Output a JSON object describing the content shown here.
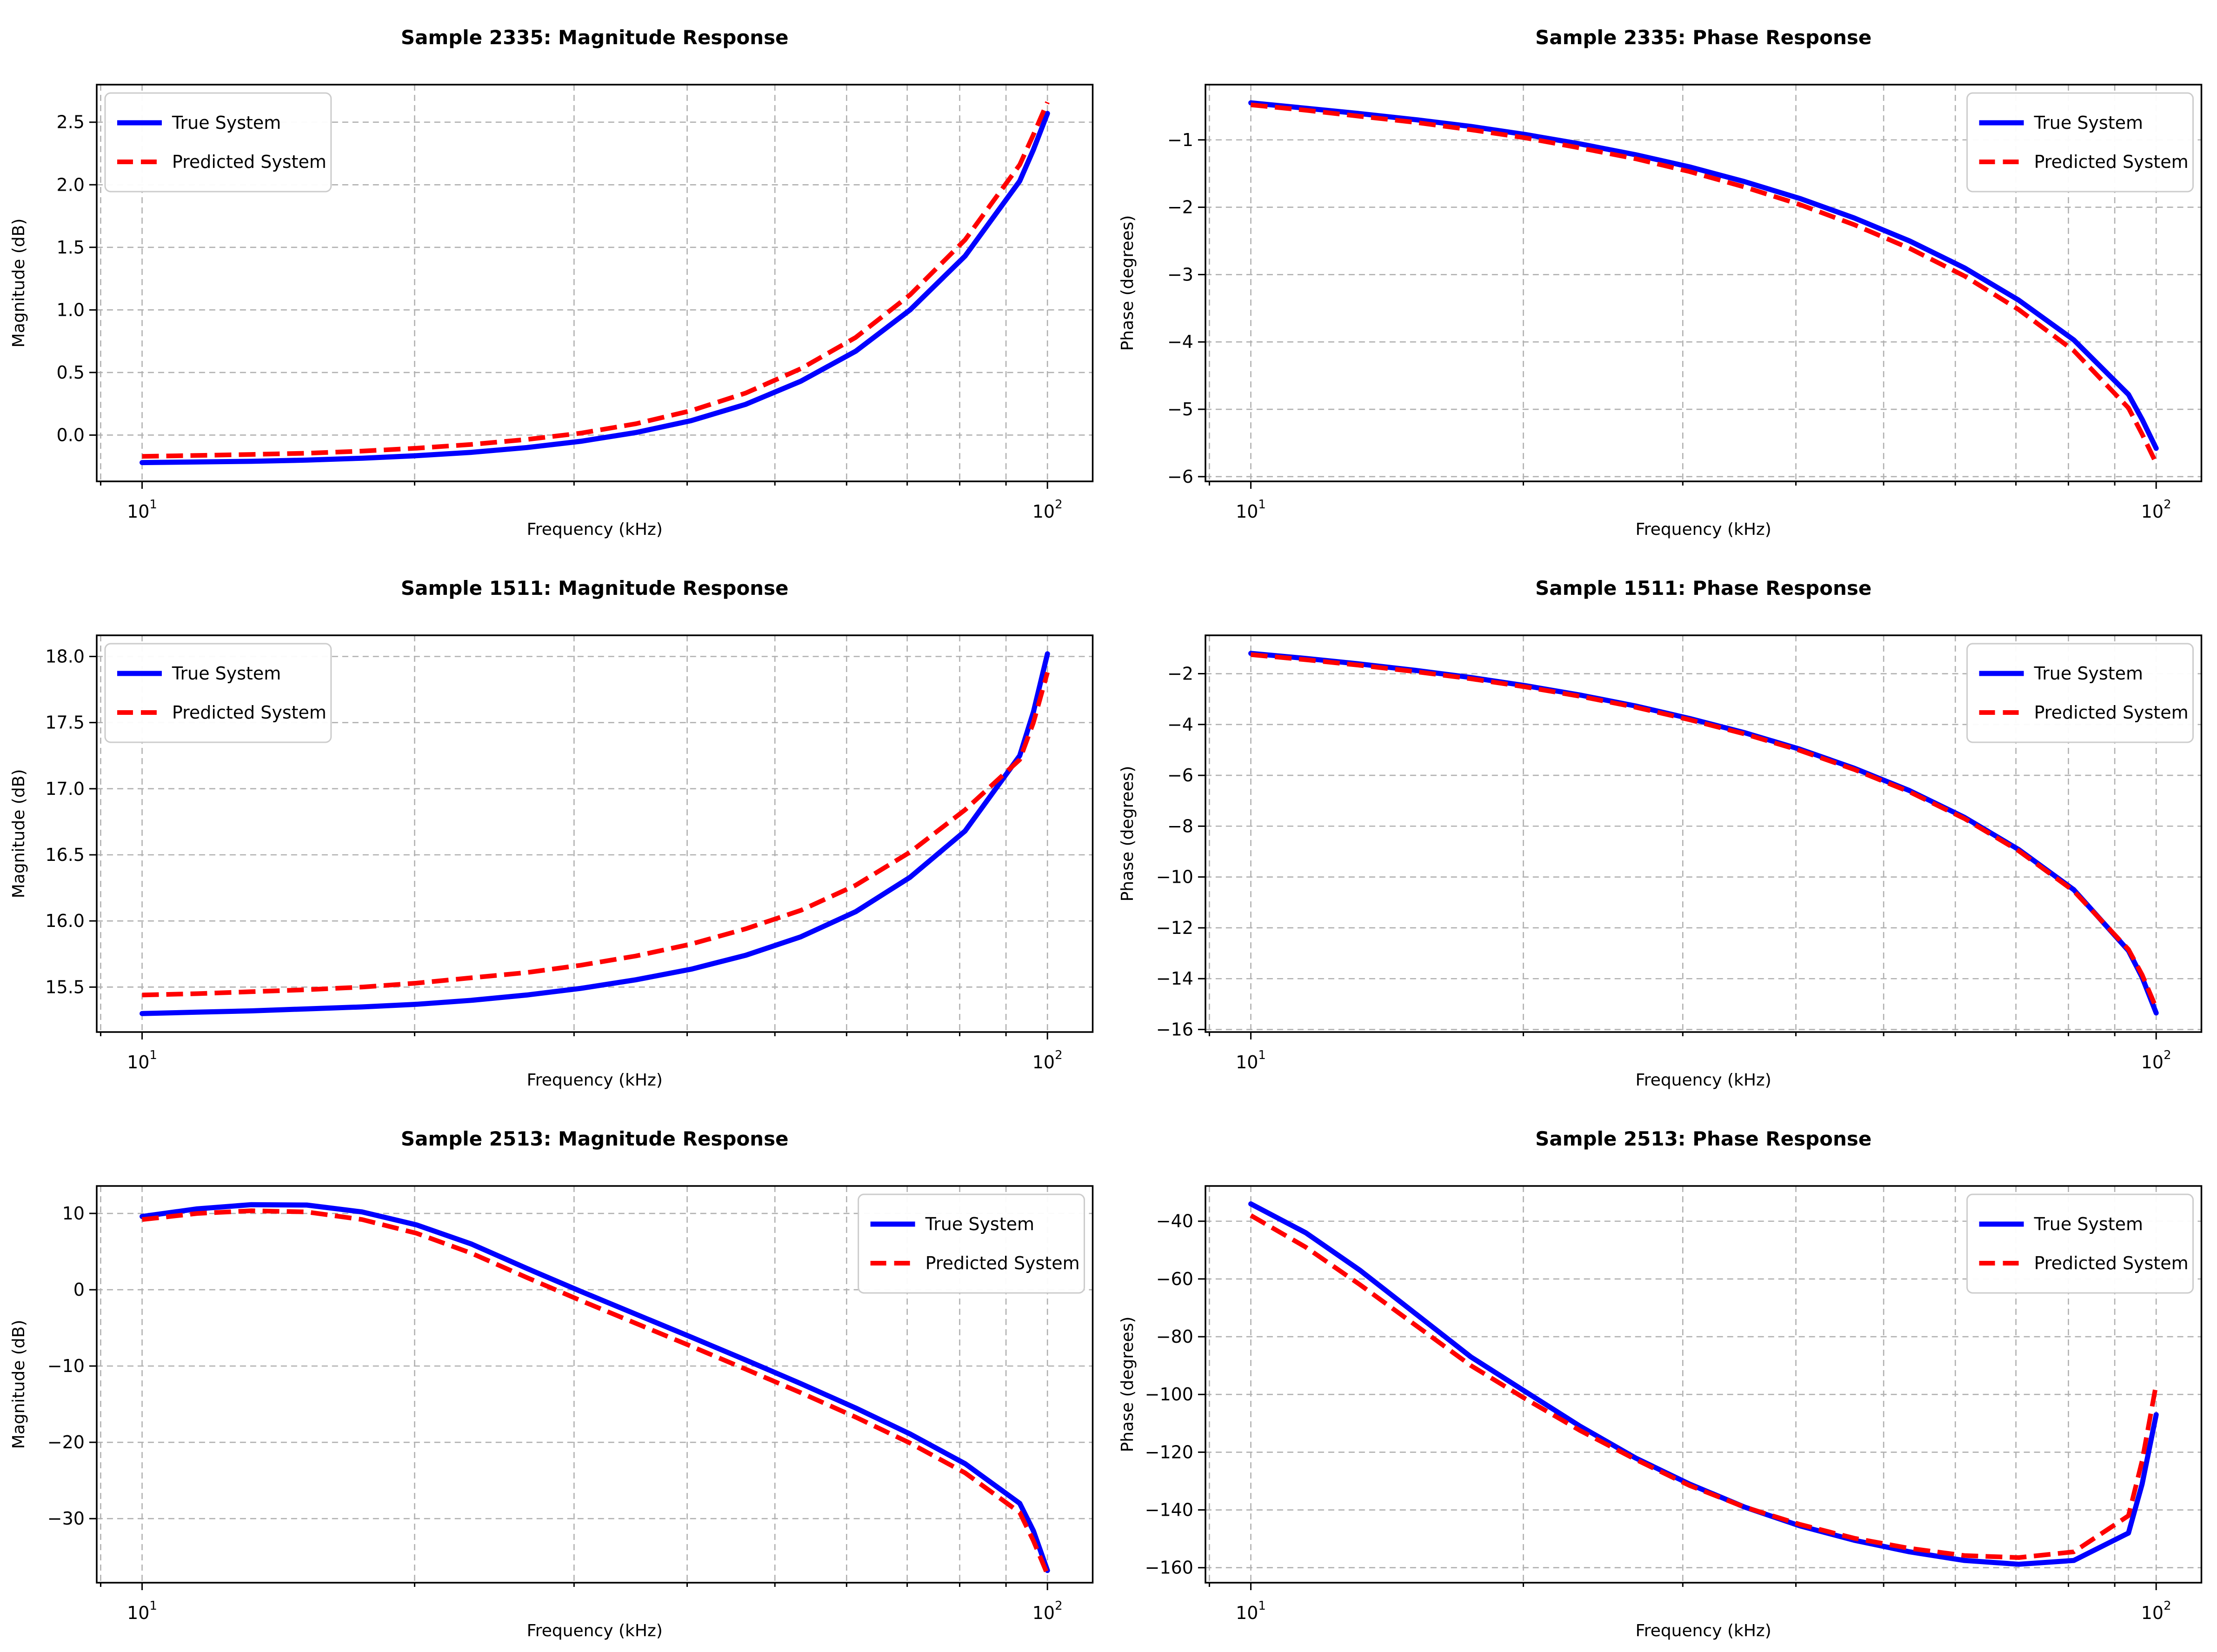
{
  "figure": {
    "background": "#ffffff",
    "frame_color": "#000000",
    "grid_color": "#b0b0b0",
    "rows": 3,
    "columns": 2
  },
  "chart_data": [
    {
      "type": "line",
      "title": "Sample 2335: Magnitude Response",
      "xlabel": "Frequency (kHz)",
      "ylabel": "Magnitude (dB)",
      "x_scale": "log",
      "xlim": [
        8.91,
        112.2
      ],
      "ylim": [
        -0.37,
        2.8
      ],
      "grid": true,
      "legend_position": "upper-left",
      "xticks_major": [
        {
          "value": 10,
          "label": "10",
          "exp": "1"
        },
        {
          "value": 100,
          "label": "10",
          "exp": "2"
        }
      ],
      "xticks_minor": [
        9,
        20,
        30,
        40,
        50,
        60,
        70,
        80,
        90
      ],
      "yticks": [
        {
          "value": 0.0,
          "label": "0.0"
        },
        {
          "value": 0.5,
          "label": "0.5"
        },
        {
          "value": 1.0,
          "label": "1.0"
        },
        {
          "value": 1.5,
          "label": "1.5"
        },
        {
          "value": 2.0,
          "label": "2.0"
        },
        {
          "value": 2.5,
          "label": "2.5"
        }
      ],
      "x": [
        10,
        11.5,
        13.2,
        15.2,
        17.5,
        20.1,
        23.1,
        26.6,
        30.5,
        35.1,
        40.4,
        46.4,
        53.4,
        61.4,
        70.5,
        81.1,
        93.2,
        96.5,
        100
      ],
      "series": [
        {
          "name": "True System",
          "color": "#0000ff",
          "dash": "solid",
          "width": 11,
          "y": [
            -0.22,
            -0.215,
            -0.21,
            -0.2,
            -0.185,
            -0.165,
            -0.138,
            -0.1,
            -0.05,
            0.02,
            0.115,
            0.245,
            0.43,
            0.67,
            1.0,
            1.43,
            2.03,
            2.28,
            2.57
          ]
        },
        {
          "name": "Predicted System",
          "color": "#ff0000",
          "dash": "dashed",
          "width": 10,
          "y": [
            -0.17,
            -0.163,
            -0.155,
            -0.145,
            -0.128,
            -0.105,
            -0.075,
            -0.035,
            0.015,
            0.09,
            0.195,
            0.335,
            0.53,
            0.78,
            1.12,
            1.56,
            2.16,
            2.4,
            2.66
          ]
        }
      ]
    },
    {
      "type": "line",
      "title": "Sample 2335: Phase Response",
      "xlabel": "Frequency (kHz)",
      "ylabel": "Phase (degrees)",
      "x_scale": "log",
      "xlim": [
        8.91,
        112.2
      ],
      "ylim": [
        -6.07,
        -0.18
      ],
      "grid": true,
      "legend_position": "upper-right",
      "xticks_major": [
        {
          "value": 10,
          "label": "10",
          "exp": "1"
        },
        {
          "value": 100,
          "label": "10",
          "exp": "2"
        }
      ],
      "xticks_minor": [
        9,
        20,
        30,
        40,
        50,
        60,
        70,
        80,
        90
      ],
      "yticks": [
        {
          "value": -1,
          "label": "−1"
        },
        {
          "value": -2,
          "label": "−2"
        },
        {
          "value": -3,
          "label": "−3"
        },
        {
          "value": -4,
          "label": "−4"
        },
        {
          "value": -5,
          "label": "−5"
        },
        {
          "value": -6,
          "label": "−6"
        }
      ],
      "x": [
        10,
        11.5,
        13.2,
        15.2,
        17.5,
        20.1,
        23.1,
        26.6,
        30.5,
        35.1,
        40.4,
        46.4,
        53.4,
        61.4,
        70.5,
        81.1,
        93.2,
        96.5,
        100
      ],
      "series": [
        {
          "name": "True System",
          "color": "#0000ff",
          "dash": "solid",
          "width": 11,
          "y": [
            -0.45,
            -0.53,
            -0.61,
            -0.7,
            -0.8,
            -0.92,
            -1.06,
            -1.22,
            -1.4,
            -1.62,
            -1.87,
            -2.16,
            -2.5,
            -2.9,
            -3.38,
            -3.97,
            -4.78,
            -5.15,
            -5.58
          ]
        },
        {
          "name": "Predicted System",
          "color": "#ff0000",
          "dash": "dashed",
          "width": 10,
          "y": [
            -0.48,
            -0.56,
            -0.65,
            -0.74,
            -0.85,
            -0.97,
            -1.12,
            -1.28,
            -1.47,
            -1.7,
            -1.96,
            -2.26,
            -2.61,
            -3.02,
            -3.52,
            -4.13,
            -4.98,
            -5.37,
            -5.8
          ]
        }
      ]
    },
    {
      "type": "line",
      "title": "Sample 1511: Magnitude Response",
      "xlabel": "Frequency (kHz)",
      "ylabel": "Magnitude (dB)",
      "x_scale": "log",
      "xlim": [
        8.91,
        112.2
      ],
      "ylim": [
        15.16,
        18.16
      ],
      "grid": true,
      "legend_position": "upper-left",
      "xticks_major": [
        {
          "value": 10,
          "label": "10",
          "exp": "1"
        },
        {
          "value": 100,
          "label": "10",
          "exp": "2"
        }
      ],
      "xticks_minor": [
        9,
        20,
        30,
        40,
        50,
        60,
        70,
        80,
        90
      ],
      "yticks": [
        {
          "value": 15.5,
          "label": "15.5"
        },
        {
          "value": 16.0,
          "label": "16.0"
        },
        {
          "value": 16.5,
          "label": "16.5"
        },
        {
          "value": 17.0,
          "label": "17.0"
        },
        {
          "value": 17.5,
          "label": "17.5"
        },
        {
          "value": 18.0,
          "label": "18.0"
        }
      ],
      "x": [
        10,
        11.5,
        13.2,
        15.2,
        17.5,
        20.1,
        23.1,
        26.6,
        30.5,
        35.1,
        40.4,
        46.4,
        53.4,
        61.4,
        70.5,
        81.1,
        93.2,
        96.5,
        100
      ],
      "series": [
        {
          "name": "True System",
          "color": "#0000ff",
          "dash": "solid",
          "width": 11,
          "y": [
            15.3,
            15.31,
            15.32,
            15.335,
            15.35,
            15.37,
            15.4,
            15.44,
            15.49,
            15.555,
            15.635,
            15.74,
            15.88,
            16.07,
            16.33,
            16.68,
            17.25,
            17.58,
            18.02
          ]
        },
        {
          "name": "Predicted System",
          "color": "#ff0000",
          "dash": "dashed",
          "width": 10,
          "y": [
            15.44,
            15.45,
            15.465,
            15.48,
            15.5,
            15.53,
            15.57,
            15.61,
            15.665,
            15.735,
            15.825,
            15.94,
            16.08,
            16.27,
            16.52,
            16.84,
            17.22,
            17.5,
            17.88
          ]
        }
      ]
    },
    {
      "type": "line",
      "title": "Sample 1511: Phase Response",
      "xlabel": "Frequency (kHz)",
      "ylabel": "Phase (degrees)",
      "x_scale": "log",
      "xlim": [
        8.91,
        112.2
      ],
      "ylim": [
        -16.1,
        -0.49
      ],
      "grid": true,
      "legend_position": "upper-right",
      "xticks_major": [
        {
          "value": 10,
          "label": "10",
          "exp": "1"
        },
        {
          "value": 100,
          "label": "10",
          "exp": "2"
        }
      ],
      "xticks_minor": [
        9,
        20,
        30,
        40,
        50,
        60,
        70,
        80,
        90
      ],
      "yticks": [
        {
          "value": -2,
          "label": "−2"
        },
        {
          "value": -4,
          "label": "−4"
        },
        {
          "value": -6,
          "label": "−6"
        },
        {
          "value": -8,
          "label": "−8"
        },
        {
          "value": -10,
          "label": "−10"
        },
        {
          "value": -12,
          "label": "−12"
        },
        {
          "value": -14,
          "label": "−14"
        },
        {
          "value": -16,
          "label": "−16"
        }
      ],
      "x": [
        10,
        11.5,
        13.2,
        15.2,
        17.5,
        20.1,
        23.1,
        26.6,
        30.5,
        35.1,
        40.4,
        46.4,
        53.4,
        61.4,
        70.5,
        81.1,
        93.2,
        96.5,
        100
      ],
      "series": [
        {
          "name": "True System",
          "color": "#0000ff",
          "dash": "solid",
          "width": 11,
          "y": [
            -1.2,
            -1.4,
            -1.62,
            -1.87,
            -2.15,
            -2.47,
            -2.84,
            -3.27,
            -3.76,
            -4.32,
            -4.97,
            -5.72,
            -6.6,
            -7.65,
            -8.92,
            -10.5,
            -12.9,
            -13.95,
            -15.35
          ]
        },
        {
          "name": "Predicted System",
          "color": "#ff0000",
          "dash": "dashed",
          "width": 10,
          "y": [
            -1.25,
            -1.45,
            -1.67,
            -1.92,
            -2.2,
            -2.52,
            -2.89,
            -3.32,
            -3.81,
            -4.37,
            -5.02,
            -5.77,
            -6.65,
            -7.7,
            -8.97,
            -10.55,
            -12.85,
            -13.85,
            -15.15
          ]
        }
      ]
    },
    {
      "type": "line",
      "title": "Sample 2513: Magnitude Response",
      "xlabel": "Frequency (kHz)",
      "ylabel": "Magnitude (dB)",
      "x_scale": "log",
      "xlim": [
        8.91,
        112.2
      ],
      "ylim": [
        -38.4,
        13.6
      ],
      "grid": true,
      "legend_position": "upper-right",
      "xticks_major": [
        {
          "value": 10,
          "label": "10",
          "exp": "1"
        },
        {
          "value": 100,
          "label": "10",
          "exp": "2"
        }
      ],
      "xticks_minor": [
        9,
        20,
        30,
        40,
        50,
        60,
        70,
        80,
        90
      ],
      "yticks": [
        {
          "value": 10,
          "label": "10"
        },
        {
          "value": 0,
          "label": "0"
        },
        {
          "value": -10,
          "label": "−10"
        },
        {
          "value": -20,
          "label": "−20"
        },
        {
          "value": -30,
          "label": "−30"
        }
      ],
      "x": [
        10,
        11.5,
        13.2,
        15.2,
        17.5,
        20.1,
        23.1,
        26.6,
        30.5,
        35.1,
        40.4,
        46.4,
        53.4,
        61.4,
        70.5,
        81.1,
        93.2,
        96.5,
        100
      ],
      "series": [
        {
          "name": "True System",
          "color": "#0000ff",
          "dash": "solid",
          "width": 11,
          "y": [
            9.6,
            10.6,
            11.15,
            11.1,
            10.2,
            8.5,
            6.0,
            2.8,
            -0.2,
            -3.2,
            -6.2,
            -9.2,
            -12.3,
            -15.5,
            -18.9,
            -22.8,
            -28.0,
            -31.6,
            -36.8
          ]
        },
        {
          "name": "Predicted System",
          "color": "#ff0000",
          "dash": "dashed",
          "width": 10,
          "y": [
            9.2,
            10.0,
            10.35,
            10.2,
            9.2,
            7.4,
            4.8,
            1.6,
            -1.4,
            -4.4,
            -7.4,
            -10.4,
            -13.5,
            -16.7,
            -20.1,
            -24.0,
            -29.2,
            -32.9,
            -37.3
          ]
        }
      ]
    },
    {
      "type": "line",
      "title": "Sample 2513: Phase Response",
      "xlabel": "Frequency (kHz)",
      "ylabel": "Phase (degrees)",
      "x_scale": "log",
      "xlim": [
        8.91,
        112.2
      ],
      "ylim": [
        -165.2,
        -27.8
      ],
      "grid": true,
      "legend_position": "upper-right",
      "xticks_major": [
        {
          "value": 10,
          "label": "10",
          "exp": "1"
        },
        {
          "value": 100,
          "label": "10",
          "exp": "2"
        }
      ],
      "xticks_minor": [
        9,
        20,
        30,
        40,
        50,
        60,
        70,
        80,
        90
      ],
      "yticks": [
        {
          "value": -40,
          "label": "−40"
        },
        {
          "value": -60,
          "label": "−60"
        },
        {
          "value": -80,
          "label": "−80"
        },
        {
          "value": -100,
          "label": "−100"
        },
        {
          "value": -120,
          "label": "−120"
        },
        {
          "value": -140,
          "label": "−140"
        },
        {
          "value": -160,
          "label": "−160"
        }
      ],
      "x": [
        10,
        11.5,
        13.2,
        15.2,
        17.5,
        20.1,
        23.1,
        26.6,
        30.5,
        35.1,
        40.4,
        46.4,
        53.4,
        61.4,
        70.5,
        81.1,
        93.2,
        96.5,
        100
      ],
      "series": [
        {
          "name": "True System",
          "color": "#0000ff",
          "dash": "solid",
          "width": 11,
          "y": [
            -34,
            -44,
            -57,
            -72,
            -87,
            -99,
            -111,
            -122,
            -131,
            -139,
            -145.5,
            -150.5,
            -154.5,
            -157.5,
            -158.8,
            -157.5,
            -148,
            -131,
            -107
          ]
        },
        {
          "name": "Predicted System",
          "color": "#ff0000",
          "dash": "dashed",
          "width": 10,
          "y": [
            -38,
            -49,
            -62,
            -76,
            -90,
            -101.5,
            -112.5,
            -122.5,
            -131.5,
            -139,
            -145,
            -149.8,
            -153.3,
            -155.8,
            -156.5,
            -154.5,
            -142,
            -123,
            -96.5
          ]
        }
      ]
    }
  ]
}
